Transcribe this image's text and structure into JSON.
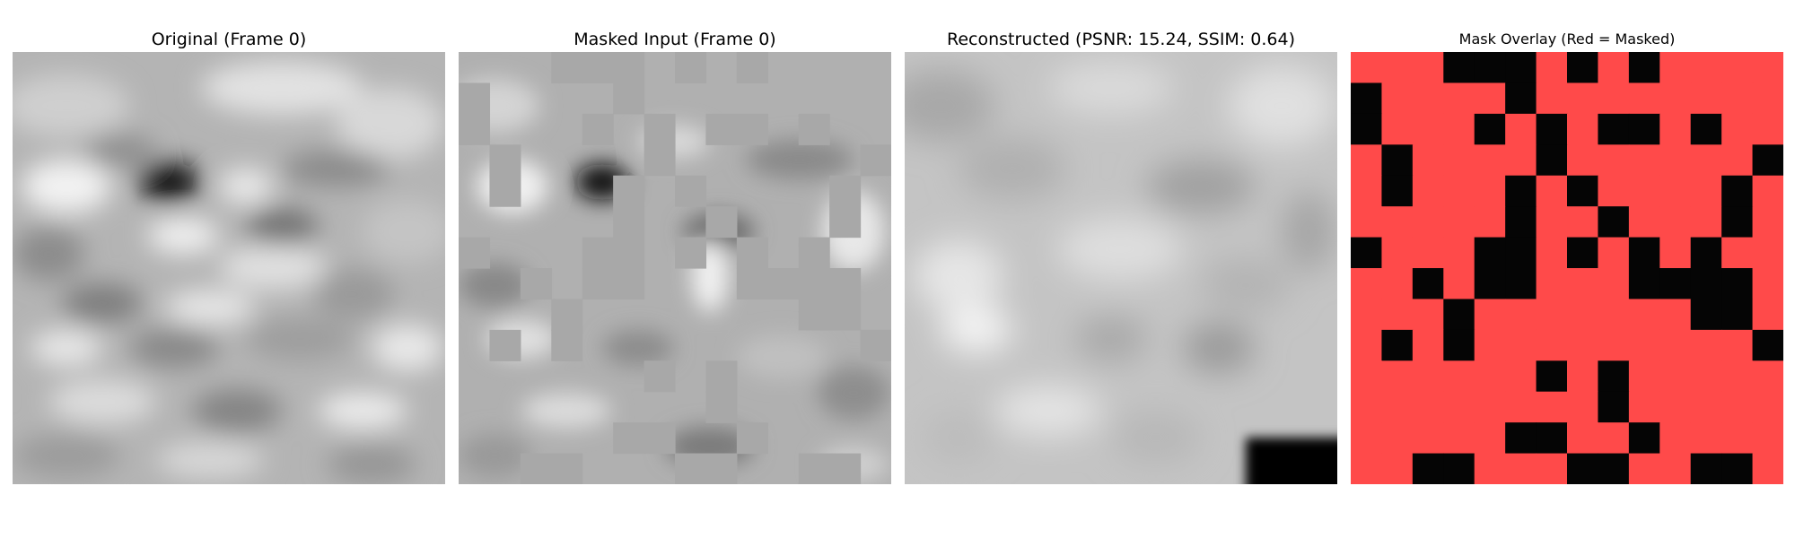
{
  "panels": [
    {
      "title": "Original (Frame 0)",
      "kind": "original"
    },
    {
      "title": "Masked Input (Frame 0)",
      "kind": "masked-input"
    },
    {
      "title": "Reconstructed (PSNR: 15.24, SSIM: 0.64)",
      "kind": "reconstructed"
    },
    {
      "title": "Mask Overlay (Red = Masked)",
      "kind": "mask-overlay"
    }
  ],
  "colors": {
    "mask_red": "#ff4a4a",
    "mask_visible": "#050505",
    "masked_fill": "#a8a8a8",
    "background": "#ffffff"
  },
  "mask_grid": {
    "rows": 14,
    "cols": 14,
    "visible_cells": [
      "0-3",
      "0-4",
      "0-5",
      "0-7",
      "0-9",
      "1-0",
      "1-5",
      "2-0",
      "2-4",
      "2-6",
      "2-8",
      "2-9",
      "2-11",
      "3-1",
      "3-6",
      "3-13",
      "4-1",
      "4-5",
      "4-7",
      "4-12",
      "5-5",
      "5-8",
      "5-12",
      "6-0",
      "6-4",
      "6-5",
      "6-7",
      "6-9",
      "6-11",
      "7-2",
      "7-4",
      "7-5",
      "7-9",
      "7-10",
      "7-11",
      "7-12",
      "8-3",
      "8-11",
      "8-12",
      "9-1",
      "9-3",
      "9-13",
      "10-6",
      "10-8",
      "11-8",
      "12-5",
      "12-6",
      "12-9",
      "13-2",
      "13-3",
      "13-7",
      "13-8",
      "13-11",
      "13-12"
    ]
  }
}
